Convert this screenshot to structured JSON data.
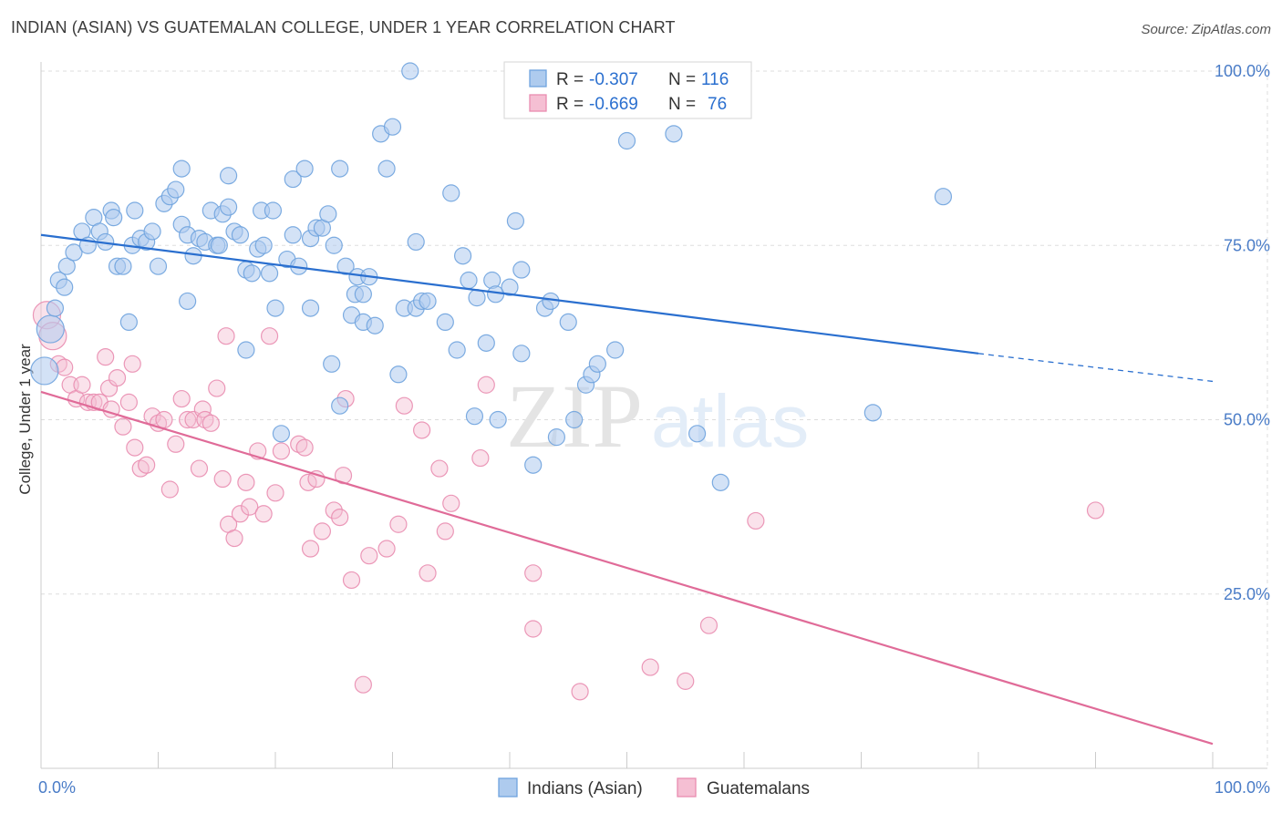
{
  "title": "INDIAN (ASIAN) VS GUATEMALAN COLLEGE, UNDER 1 YEAR CORRELATION CHART",
  "source": "Source: ZipAtlas.com",
  "watermark": {
    "zip": "ZIP",
    "atlas": "atlas"
  },
  "colors": {
    "blue": "#6fa3de",
    "blue_fill": "#aecbee",
    "blue_line": "#2a6fcf",
    "pink": "#e98db0",
    "pink_fill": "#f5bfd3",
    "pink_line": "#e06b98",
    "axis_label": "#4a7cc7",
    "grid": "#dddddd"
  },
  "legend": {
    "rows": [
      {
        "r_label": "R = ",
        "r_value": "-0.307",
        "n_label": "N = ",
        "n_value": "116",
        "series": "blue"
      },
      {
        "r_label": "R = ",
        "r_value": "-0.669",
        "n_label": "N = ",
        "n_value": "76",
        "series": "pink"
      }
    ]
  },
  "chart_data": {
    "type": "scatter",
    "ylabel": "College, Under 1 year",
    "xlim": [
      0,
      100
    ],
    "ylim": [
      0,
      100
    ],
    "x_tick_labels": [
      {
        "x": 0,
        "label": "0.0%"
      },
      {
        "x": 100,
        "label": "100.0%"
      }
    ],
    "y_tick_labels": [
      {
        "y": 25,
        "label": "25.0%"
      },
      {
        "y": 50,
        "label": "50.0%"
      },
      {
        "y": 75,
        "label": "75.0%"
      },
      {
        "y": 100,
        "label": "100.0%"
      }
    ],
    "grid": true,
    "legend_position": "bottom",
    "series": [
      {
        "name": "Indians (Asian)",
        "color": "blue",
        "trend": {
          "x0": 0,
          "y0": 76.5,
          "x1": 80,
          "y1": 59.5,
          "dash_to_x": 100,
          "dash_to_y": 55.5
        },
        "points": [
          [
            0.3,
            57,
            "L"
          ],
          [
            0.8,
            63,
            "L"
          ],
          [
            1.2,
            66
          ],
          [
            1.5,
            70
          ],
          [
            2,
            69
          ],
          [
            2.2,
            72
          ],
          [
            2.8,
            74
          ],
          [
            3.5,
            77
          ],
          [
            4,
            75
          ],
          [
            4.5,
            79
          ],
          [
            5,
            77
          ],
          [
            5.5,
            75.5
          ],
          [
            6,
            80
          ],
          [
            6.2,
            79
          ],
          [
            6.5,
            72
          ],
          [
            7,
            72
          ],
          [
            7.5,
            64
          ],
          [
            7.8,
            75
          ],
          [
            8,
            80
          ],
          [
            8.5,
            76
          ],
          [
            9,
            75.5
          ],
          [
            9.5,
            77
          ],
          [
            10,
            72
          ],
          [
            10.5,
            81
          ],
          [
            11,
            82
          ],
          [
            11.5,
            83
          ],
          [
            12,
            78
          ],
          [
            12,
            86
          ],
          [
            12.5,
            76.5
          ],
          [
            12.5,
            67
          ],
          [
            13,
            73.5
          ],
          [
            13.5,
            76
          ],
          [
            14,
            75.5
          ],
          [
            14.5,
            80
          ],
          [
            15,
            75
          ],
          [
            15.2,
            75
          ],
          [
            15.5,
            79.5
          ],
          [
            16,
            85
          ],
          [
            16,
            80.5
          ],
          [
            16.5,
            77
          ],
          [
            17,
            76.5
          ],
          [
            17.5,
            71.5
          ],
          [
            17.5,
            60
          ],
          [
            18,
            71
          ],
          [
            18.5,
            74.5
          ],
          [
            18.8,
            80
          ],
          [
            19,
            75
          ],
          [
            19.5,
            71
          ],
          [
            19.8,
            80
          ],
          [
            20,
            66
          ],
          [
            20.5,
            48
          ],
          [
            21,
            73
          ],
          [
            21.5,
            76.5
          ],
          [
            21.5,
            84.5
          ],
          [
            22,
            72
          ],
          [
            22.5,
            86
          ],
          [
            23,
            76
          ],
          [
            23,
            66
          ],
          [
            23.5,
            77.5
          ],
          [
            24,
            77.5
          ],
          [
            24.5,
            79.5
          ],
          [
            24.8,
            58
          ],
          [
            25,
            75
          ],
          [
            25.5,
            52
          ],
          [
            25.5,
            86
          ],
          [
            26,
            72
          ],
          [
            26.5,
            65
          ],
          [
            26.8,
            68
          ],
          [
            27,
            70.5
          ],
          [
            27.5,
            64
          ],
          [
            27.5,
            68
          ],
          [
            28,
            70.5
          ],
          [
            28.5,
            63.5
          ],
          [
            29,
            91
          ],
          [
            29.5,
            86
          ],
          [
            30,
            92
          ],
          [
            30.5,
            56.5
          ],
          [
            31,
            66
          ],
          [
            31.5,
            100
          ],
          [
            32,
            66
          ],
          [
            32,
            75.5
          ],
          [
            32.5,
            67
          ],
          [
            33,
            67
          ],
          [
            34.5,
            64
          ],
          [
            35,
            82.5
          ],
          [
            35.5,
            60
          ],
          [
            36,
            73.5
          ],
          [
            36.5,
            70
          ],
          [
            37,
            50.5
          ],
          [
            37.2,
            67.5
          ],
          [
            38,
            61
          ],
          [
            38.5,
            70
          ],
          [
            38.8,
            68
          ],
          [
            39,
            50
          ],
          [
            40,
            69
          ],
          [
            40.5,
            78.5
          ],
          [
            41,
            71.5
          ],
          [
            41,
            59.5
          ],
          [
            42,
            43.5
          ],
          [
            43,
            66
          ],
          [
            43.5,
            67
          ],
          [
            44,
            47.5
          ],
          [
            45,
            64
          ],
          [
            45.5,
            50
          ],
          [
            46.5,
            55
          ],
          [
            47,
            56.5
          ],
          [
            47.5,
            58
          ],
          [
            48,
            97
          ],
          [
            49,
            60
          ],
          [
            50,
            90
          ],
          [
            54,
            91
          ],
          [
            56,
            48
          ],
          [
            58,
            41
          ],
          [
            71,
            51
          ],
          [
            77,
            82
          ]
        ]
      },
      {
        "name": "Guatemalans",
        "color": "pink",
        "trend": {
          "x0": 0,
          "y0": 54,
          "x1": 100,
          "y1": 3.5
        },
        "points": [
          [
            0.5,
            65,
            "L"
          ],
          [
            1,
            62,
            "L"
          ],
          [
            1.5,
            58
          ],
          [
            2,
            57.5
          ],
          [
            2.5,
            55
          ],
          [
            3,
            53
          ],
          [
            3.5,
            55
          ],
          [
            4,
            52.5
          ],
          [
            4.5,
            52.5
          ],
          [
            5,
            52.5
          ],
          [
            5.5,
            59
          ],
          [
            5.8,
            54.5
          ],
          [
            6,
            51.5
          ],
          [
            6.5,
            56
          ],
          [
            7,
            49
          ],
          [
            7.5,
            52.5
          ],
          [
            7.8,
            58
          ],
          [
            8,
            46
          ],
          [
            8.5,
            43
          ],
          [
            9,
            43.5
          ],
          [
            9.5,
            50.5
          ],
          [
            10,
            49.5
          ],
          [
            10.5,
            50
          ],
          [
            11,
            40
          ],
          [
            11.5,
            46.5
          ],
          [
            12,
            53
          ],
          [
            12.5,
            50
          ],
          [
            13,
            50
          ],
          [
            13.5,
            43
          ],
          [
            13.8,
            51.5
          ],
          [
            14,
            50
          ],
          [
            14.5,
            49.5
          ],
          [
            15,
            54.5
          ],
          [
            15.5,
            41.5
          ],
          [
            15.8,
            62
          ],
          [
            16,
            35
          ],
          [
            16.5,
            33
          ],
          [
            17,
            36.5
          ],
          [
            17.5,
            41
          ],
          [
            17.8,
            37.5
          ],
          [
            18.5,
            45.5
          ],
          [
            19,
            36.5
          ],
          [
            19.5,
            62
          ],
          [
            20,
            39.5
          ],
          [
            20.5,
            45.5
          ],
          [
            22,
            46.5
          ],
          [
            22.5,
            46
          ],
          [
            22.8,
            41
          ],
          [
            23,
            31.5
          ],
          [
            23.5,
            41.5
          ],
          [
            24,
            34
          ],
          [
            25,
            37
          ],
          [
            25.5,
            36
          ],
          [
            25.8,
            42
          ],
          [
            26,
            53
          ],
          [
            26.5,
            27
          ],
          [
            27.5,
            12
          ],
          [
            28,
            30.5
          ],
          [
            29.5,
            31.5
          ],
          [
            30.5,
            35
          ],
          [
            31,
            52
          ],
          [
            32.5,
            48.5
          ],
          [
            33,
            28
          ],
          [
            34,
            43
          ],
          [
            34.5,
            34
          ],
          [
            35,
            38
          ],
          [
            37.5,
            44.5
          ],
          [
            38,
            55
          ],
          [
            42,
            28
          ],
          [
            42,
            20
          ],
          [
            46,
            11
          ],
          [
            52,
            14.5
          ],
          [
            55,
            12.5
          ],
          [
            57,
            20.5
          ],
          [
            61,
            35.5
          ],
          [
            90,
            37
          ]
        ]
      }
    ]
  }
}
